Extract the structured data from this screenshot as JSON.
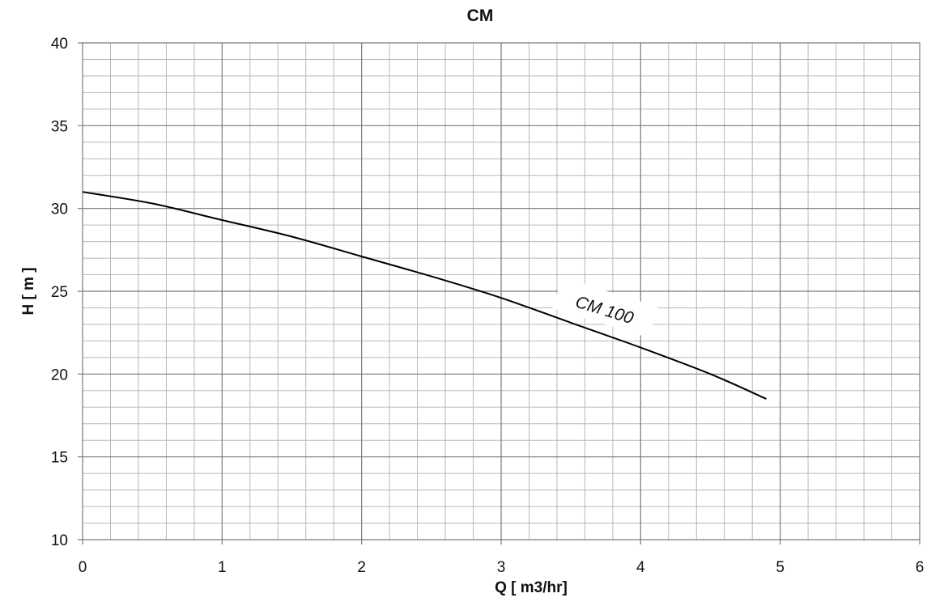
{
  "chart_data": {
    "type": "line",
    "title": "CM",
    "xlabel": "Q [ m3/hr]",
    "ylabel": "H [ m ]",
    "xlim": [
      0,
      6
    ],
    "ylim": [
      10,
      40
    ],
    "x_ticks": [
      0,
      1,
      2,
      3,
      4,
      5,
      6
    ],
    "y_ticks": [
      10,
      15,
      20,
      25,
      30,
      35,
      40
    ],
    "x_minor_step": 0.2,
    "y_minor_step": 1,
    "grid": true,
    "series": [
      {
        "name": "CM 100",
        "color": "#000000",
        "x": [
          0,
          0.5,
          1,
          1.5,
          2,
          2.5,
          3,
          3.5,
          4,
          4.5,
          4.9
        ],
        "y": [
          31.0,
          30.3,
          29.3,
          28.3,
          27.1,
          25.9,
          24.6,
          23.1,
          21.6,
          20.0,
          18.5
        ]
      }
    ]
  }
}
